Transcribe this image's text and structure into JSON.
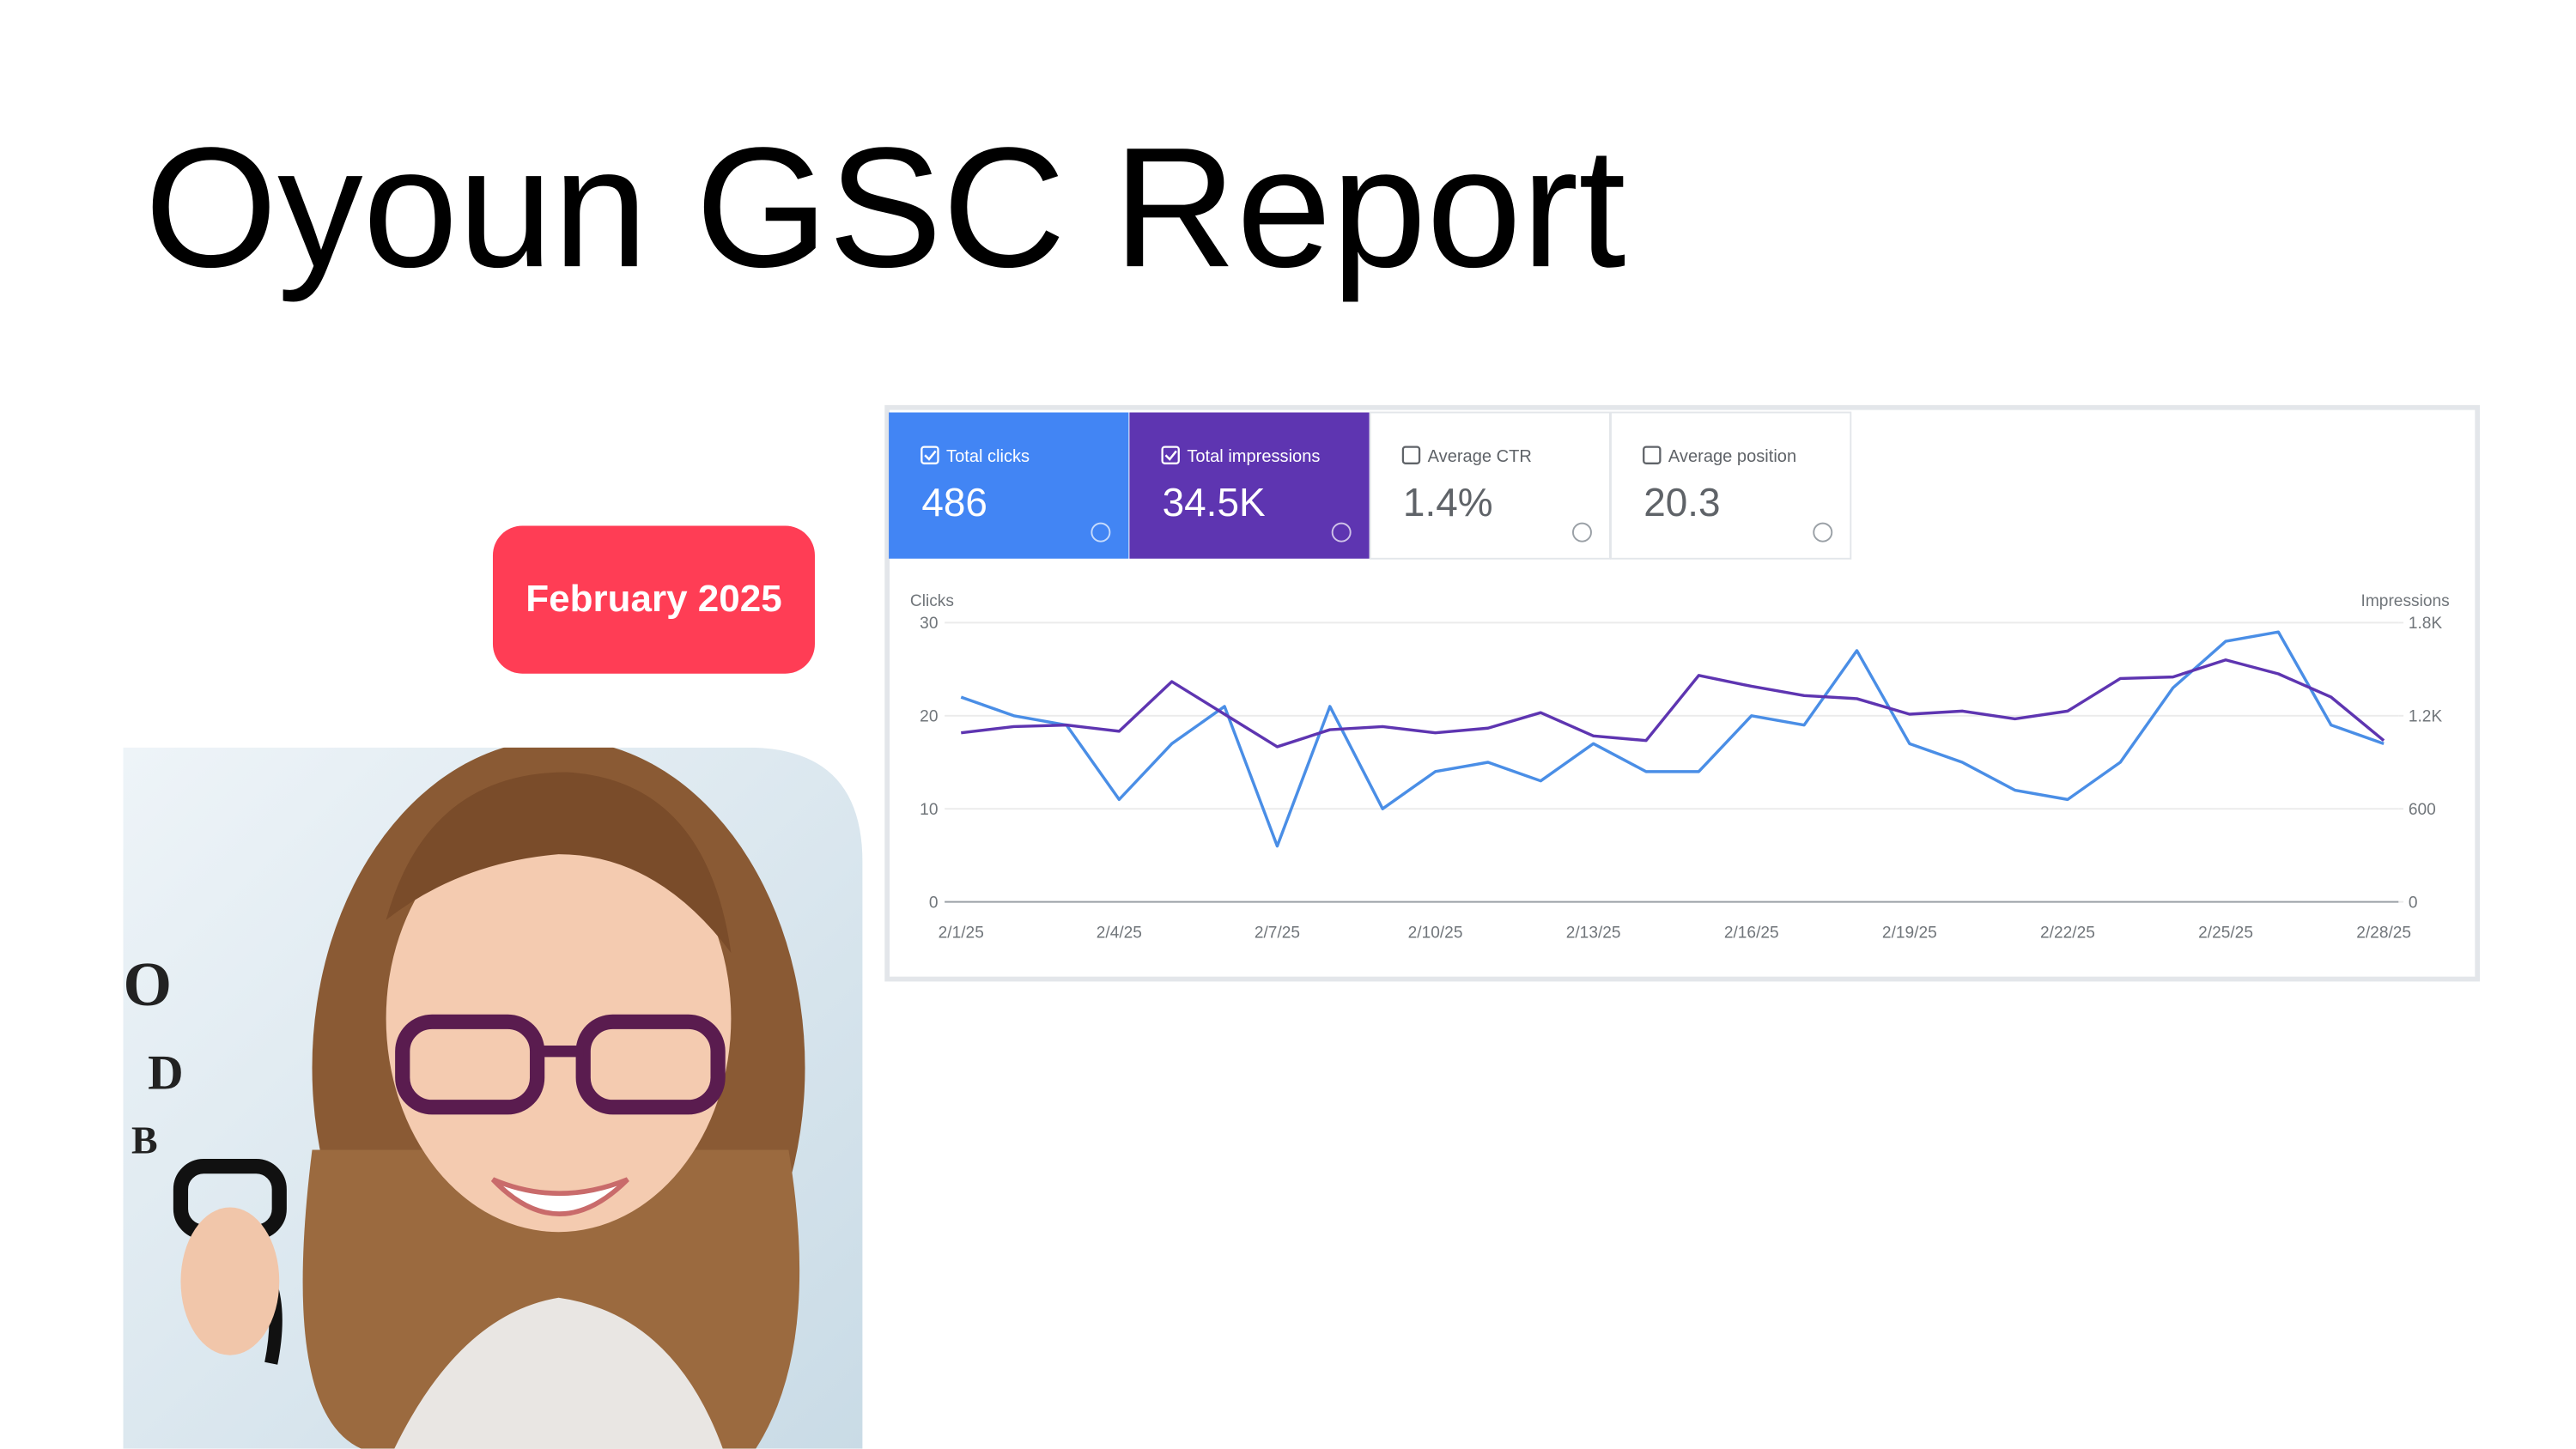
{
  "title": "Oyoun GSC Report",
  "badge": "February 2025",
  "photo": {
    "chart_letters": [
      "O",
      "D",
      "B"
    ]
  },
  "cards": [
    {
      "label": "Total clicks",
      "value": "486"
    },
    {
      "label": "Total impressions",
      "value": "34.5K"
    },
    {
      "label": "Average CTR",
      "value": "1.4%"
    },
    {
      "label": "Average position",
      "value": "20.3"
    }
  ],
  "chart_data": {
    "type": "line",
    "y_label": "Clicks",
    "y2_label": "Impressions",
    "categories": [
      "2/1/25",
      null,
      null,
      "2/4/25",
      null,
      null,
      "2/7/25",
      null,
      null,
      "2/10/25",
      null,
      null,
      "2/13/25",
      null,
      null,
      "2/16/25",
      null,
      null,
      "2/19/25",
      null,
      null,
      "2/22/25",
      null,
      null,
      "2/25/25",
      null,
      null,
      "2/28/25"
    ],
    "series": [
      {
        "name": "Clicks",
        "color": "#4a8ee6",
        "values": [
          22,
          20,
          19,
          11,
          17,
          21,
          6,
          21,
          10,
          14,
          15,
          13,
          17,
          14,
          14,
          20,
          19,
          27,
          17,
          15,
          12,
          11,
          15,
          23,
          28,
          29,
          19,
          17
        ]
      },
      {
        "name": "Impressions",
        "color": "#5e35b1",
        "axis": "y2",
        "values": [
          1090,
          1130,
          1140,
          1100,
          1420,
          1210,
          1000,
          1110,
          1130,
          1090,
          1120,
          1220,
          1070,
          1040,
          1460,
          1390,
          1330,
          1310,
          1210,
          1230,
          1180,
          1230,
          1440,
          1450,
          1560,
          1470,
          1320,
          1040
        ]
      }
    ],
    "ylim": [
      0,
      30
    ],
    "yticks": [
      0,
      10,
      20,
      30
    ],
    "y2lim": [
      0,
      1800
    ],
    "y2ticks": [
      0,
      600,
      {
        "value": 1200,
        "label": "1.2K"
      },
      {
        "value": 1800,
        "label": "1.8K"
      }
    ],
    "grid": true
  }
}
